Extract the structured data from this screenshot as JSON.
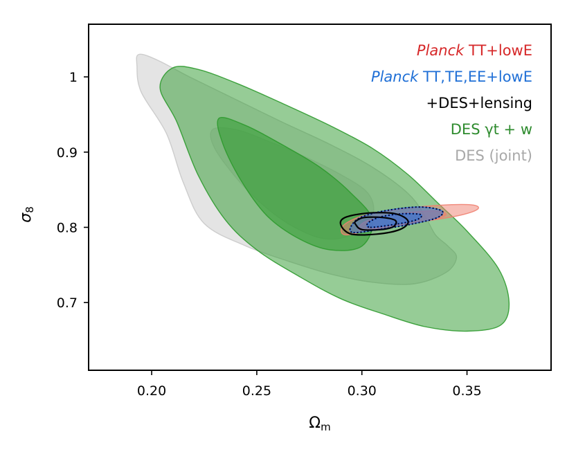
{
  "chart_data": {
    "type": "contour",
    "xlabel": "Ωm",
    "ylabel": "σ8",
    "xlim": [
      0.17,
      0.39
    ],
    "ylim": [
      0.61,
      1.07
    ],
    "x_ticks": [
      {
        "value": 0.2,
        "label": "0.20"
      },
      {
        "value": 0.25,
        "label": "0.25"
      },
      {
        "value": 0.3,
        "label": "0.30"
      },
      {
        "value": 0.35,
        "label": "0.35"
      }
    ],
    "y_ticks": [
      {
        "value": 0.7,
        "label": "0.7"
      },
      {
        "value": 0.8,
        "label": "0.8"
      },
      {
        "value": 0.9,
        "label": "0.9"
      },
      {
        "value": 1.0,
        "label": "1"
      }
    ],
    "legend_position": "top-right",
    "legend": [
      {
        "italic": "Planck",
        "text": " TT+lowE",
        "color": "#d62728"
      },
      {
        "italic": "Planck",
        "text": " TT,TE,EE+lowE",
        "color": "#1f6fd6"
      },
      {
        "italic": "",
        "text": "+DES+lensing",
        "color": "#000000"
      },
      {
        "italic": "",
        "text": "DES γt + w",
        "color": "#2e8b2e"
      },
      {
        "italic": "",
        "text": "DES (joint)",
        "color": "#a8a8a8"
      }
    ],
    "series": [
      {
        "legend_index": 4,
        "fill": "#c9c9c9",
        "contours": [
          {
            "level": "95%",
            "points": [
              [
                0.194,
                1.03
              ],
              [
                0.203,
                1.022
              ],
              [
                0.218,
                1.0
              ],
              [
                0.24,
                0.97
              ],
              [
                0.262,
                0.94
              ],
              [
                0.285,
                0.91
              ],
              [
                0.305,
                0.88
              ],
              [
                0.322,
                0.845
              ],
              [
                0.33,
                0.815
              ],
              [
                0.335,
                0.79
              ],
              [
                0.341,
                0.775
              ],
              [
                0.345,
                0.76
              ],
              [
                0.34,
                0.74
              ],
              [
                0.325,
                0.725
              ],
              [
                0.305,
                0.727
              ],
              [
                0.285,
                0.738
              ],
              [
                0.265,
                0.755
              ],
              [
                0.245,
                0.775
              ],
              [
                0.225,
                0.805
              ],
              [
                0.215,
                0.86
              ],
              [
                0.207,
                0.925
              ],
              [
                0.195,
                0.98
              ],
              [
                0.193,
                1.015
              ]
            ]
          },
          {
            "level": "68%",
            "points": [
              [
                0.229,
                0.93
              ],
              [
                0.24,
                0.93
              ],
              [
                0.255,
                0.915
              ],
              [
                0.272,
                0.895
              ],
              [
                0.29,
                0.87
              ],
              [
                0.303,
                0.845
              ],
              [
                0.305,
                0.815
              ],
              [
                0.295,
                0.79
              ],
              [
                0.282,
                0.785
              ],
              [
                0.268,
                0.8
              ],
              [
                0.255,
                0.825
              ],
              [
                0.242,
                0.86
              ],
              [
                0.23,
                0.905
              ]
            ]
          }
        ]
      },
      {
        "legend_index": 3,
        "fill": "#2e9a2e",
        "contours": [
          {
            "level": "95%",
            "points": [
              [
                0.21,
                1.012
              ],
              [
                0.222,
                1.01
              ],
              [
                0.24,
                0.992
              ],
              [
                0.262,
                0.965
              ],
              [
                0.285,
                0.935
              ],
              [
                0.305,
                0.905
              ],
              [
                0.322,
                0.87
              ],
              [
                0.337,
                0.83
              ],
              [
                0.35,
                0.795
              ],
              [
                0.365,
                0.745
              ],
              [
                0.37,
                0.7
              ],
              [
                0.366,
                0.67
              ],
              [
                0.35,
                0.662
              ],
              [
                0.33,
                0.668
              ],
              [
                0.31,
                0.685
              ],
              [
                0.29,
                0.705
              ],
              [
                0.27,
                0.735
              ],
              [
                0.25,
                0.77
              ],
              [
                0.235,
                0.81
              ],
              [
                0.222,
                0.87
              ],
              [
                0.212,
                0.94
              ],
              [
                0.204,
                0.985
              ]
            ]
          },
          {
            "level": "68%",
            "points": [
              [
                0.232,
                0.945
              ],
              [
                0.245,
                0.935
              ],
              [
                0.262,
                0.91
              ],
              [
                0.28,
                0.88
              ],
              [
                0.295,
                0.845
              ],
              [
                0.305,
                0.81
              ],
              [
                0.3,
                0.775
              ],
              [
                0.285,
                0.77
              ],
              [
                0.27,
                0.785
              ],
              [
                0.255,
                0.815
              ],
              [
                0.243,
                0.86
              ],
              [
                0.234,
                0.91
              ]
            ]
          }
        ]
      },
      {
        "legend_index": 0,
        "fill": "#f08070",
        "contours": [
          {
            "level": "95%",
            "points": [
              [
                0.292,
                0.79
              ],
              [
                0.305,
                0.797
              ],
              [
                0.325,
                0.806
              ],
              [
                0.345,
                0.815
              ],
              [
                0.355,
                0.824
              ],
              [
                0.352,
                0.83
              ],
              [
                0.335,
                0.829
              ],
              [
                0.315,
                0.823
              ],
              [
                0.3,
                0.815
              ],
              [
                0.291,
                0.802
              ]
            ]
          },
          {
            "level": "68%",
            "points": [
              [
                0.3,
                0.796
              ],
              [
                0.316,
                0.803
              ],
              [
                0.333,
                0.81
              ],
              [
                0.34,
                0.817
              ],
              [
                0.334,
                0.822
              ],
              [
                0.318,
                0.818
              ],
              [
                0.304,
                0.81
              ],
              [
                0.299,
                0.802
              ]
            ]
          }
        ]
      },
      {
        "legend_index": 1,
        "fill": "#2b73d9",
        "contours": [
          {
            "level": "95%",
            "points": [
              [
                0.296,
                0.793
              ],
              [
                0.31,
                0.798
              ],
              [
                0.325,
                0.805
              ],
              [
                0.336,
                0.813
              ],
              [
                0.338,
                0.822
              ],
              [
                0.328,
                0.827
              ],
              [
                0.313,
                0.823
              ],
              [
                0.3,
                0.814
              ],
              [
                0.295,
                0.802
              ]
            ]
          },
          {
            "level": "68%",
            "points": [
              [
                0.304,
                0.8
              ],
              [
                0.316,
                0.804
              ],
              [
                0.326,
                0.81
              ],
              [
                0.328,
                0.817
              ],
              [
                0.319,
                0.818
              ],
              [
                0.309,
                0.814
              ],
              [
                0.303,
                0.806
              ]
            ]
          }
        ]
      },
      {
        "legend_index": 2,
        "fill": "none",
        "stroke": "#000000",
        "contours": [
          {
            "level": "95%",
            "points": [
              [
                0.29,
                0.803
              ],
              [
                0.295,
                0.791
              ],
              [
                0.307,
                0.791
              ],
              [
                0.318,
                0.797
              ],
              [
                0.322,
                0.808
              ],
              [
                0.316,
                0.818
              ],
              [
                0.303,
                0.819
              ],
              [
                0.292,
                0.813
              ]
            ]
          },
          {
            "level": "68%",
            "points": [
              [
                0.297,
                0.804
              ],
              [
                0.3,
                0.797
              ],
              [
                0.309,
                0.797
              ],
              [
                0.315,
                0.801
              ],
              [
                0.316,
                0.809
              ],
              [
                0.31,
                0.813
              ],
              [
                0.301,
                0.813
              ],
              [
                0.297,
                0.808
              ]
            ]
          }
        ]
      }
    ],
    "dotted_contours": [
      {
        "stroke": "#000033",
        "points": [
          [
            0.296,
            0.793
          ],
          [
            0.31,
            0.798
          ],
          [
            0.325,
            0.805
          ],
          [
            0.336,
            0.813
          ],
          [
            0.338,
            0.822
          ],
          [
            0.328,
            0.827
          ],
          [
            0.313,
            0.823
          ],
          [
            0.3,
            0.814
          ],
          [
            0.295,
            0.802
          ]
        ]
      },
      {
        "stroke": "#000033",
        "points": [
          [
            0.304,
            0.8
          ],
          [
            0.316,
            0.804
          ],
          [
            0.326,
            0.81
          ],
          [
            0.328,
            0.817
          ],
          [
            0.319,
            0.818
          ],
          [
            0.309,
            0.814
          ],
          [
            0.303,
            0.806
          ]
        ]
      }
    ]
  }
}
